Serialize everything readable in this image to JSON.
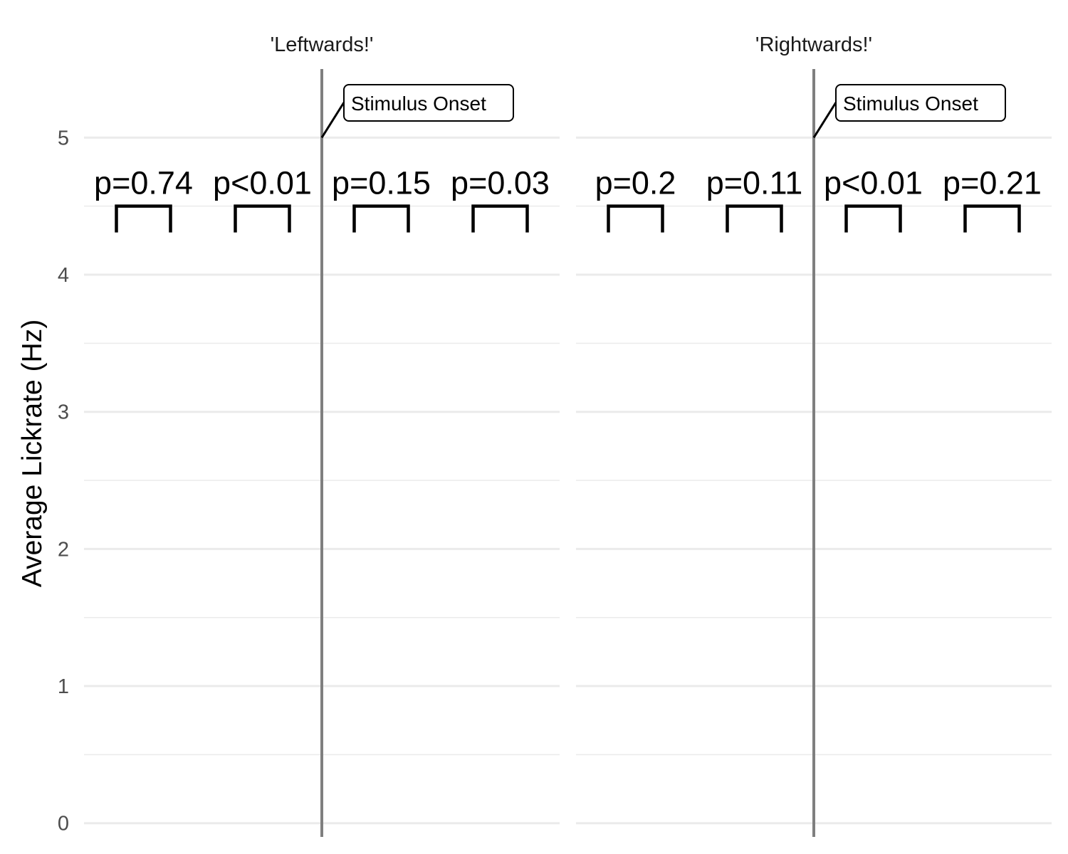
{
  "chart_data": {
    "type": "bar",
    "ylabel": "Average Lickrate (Hz)",
    "xlabel": "",
    "ylim": [
      -0.1,
      5.5
    ],
    "yticks": [
      0,
      1,
      2,
      3,
      4,
      5
    ],
    "grid": true,
    "bracket_level": 4.5,
    "annotation": {
      "label": "Stimulus Onset",
      "y": 5
    },
    "panels": [
      {
        "title": "'Leftwards!'",
        "comparisons": [
          "p=0.74",
          "p<0.01",
          "p=0.15",
          "p=0.03"
        ]
      },
      {
        "title": "'Rightwards!'",
        "comparisons": [
          "p=0.2",
          "p=0.11",
          "p<0.01",
          "p=0.21"
        ]
      }
    ]
  }
}
